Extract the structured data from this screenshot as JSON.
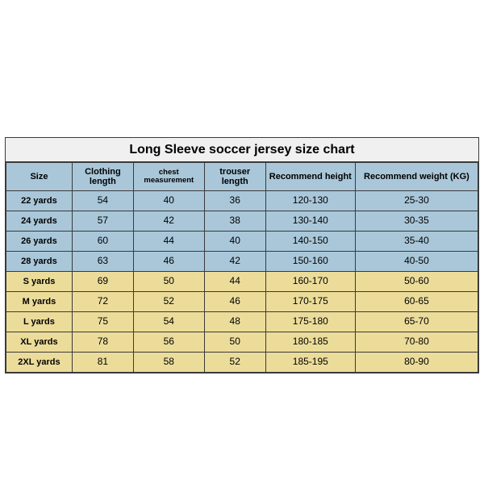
{
  "title": "Long Sleeve soccer jersey size chart",
  "columns": [
    {
      "key": "size",
      "label": "Size",
      "width": "14%",
      "small": false
    },
    {
      "key": "clothing_length",
      "label": "Clothing length",
      "width": "13%",
      "small": false
    },
    {
      "key": "chest",
      "label": "chest measurement",
      "width": "15%",
      "small": true
    },
    {
      "key": "trouser",
      "label": "trouser length",
      "width": "13%",
      "small": false
    },
    {
      "key": "height",
      "label": "Recommend height",
      "width": "19%",
      "small": false
    },
    {
      "key": "weight",
      "label": "Recommend weight (KG)",
      "width": "26%",
      "small": false
    }
  ],
  "rows": [
    {
      "group": "blue",
      "size": "22 yards",
      "clothing_length": "54",
      "chest": "40",
      "trouser": "36",
      "height": "120-130",
      "weight": "25-30"
    },
    {
      "group": "blue",
      "size": "24 yards",
      "clothing_length": "57",
      "chest": "42",
      "trouser": "38",
      "height": "130-140",
      "weight": "30-35"
    },
    {
      "group": "blue",
      "size": "26 yards",
      "clothing_length": "60",
      "chest": "44",
      "trouser": "40",
      "height": "140-150",
      "weight": "35-40"
    },
    {
      "group": "blue",
      "size": "28 yards",
      "clothing_length": "63",
      "chest": "46",
      "trouser": "42",
      "height": "150-160",
      "weight": "40-50"
    },
    {
      "group": "yellow",
      "size": "S yards",
      "clothing_length": "69",
      "chest": "50",
      "trouser": "44",
      "height": "160-170",
      "weight": "50-60"
    },
    {
      "group": "yellow",
      "size": "M yards",
      "clothing_length": "72",
      "chest": "52",
      "trouser": "46",
      "height": "170-175",
      "weight": "60-65"
    },
    {
      "group": "yellow",
      "size": "L yards",
      "clothing_length": "75",
      "chest": "54",
      "trouser": "48",
      "height": "175-180",
      "weight": "65-70"
    },
    {
      "group": "yellow",
      "size": "XL yards",
      "clothing_length": "78",
      "chest": "56",
      "trouser": "50",
      "height": "180-185",
      "weight": "70-80"
    },
    {
      "group": "yellow",
      "size": "2XL yards",
      "clothing_length": "81",
      "chest": "58",
      "trouser": "52",
      "height": "185-195",
      "weight": "80-90"
    }
  ],
  "colors": {
    "header_bg": "#a9c7d9",
    "blue_rows": "#a9c7d9",
    "yellow_rows": "#ecdc9a",
    "border": "#3a3a3a",
    "title_bg": "#f0f0f0"
  }
}
